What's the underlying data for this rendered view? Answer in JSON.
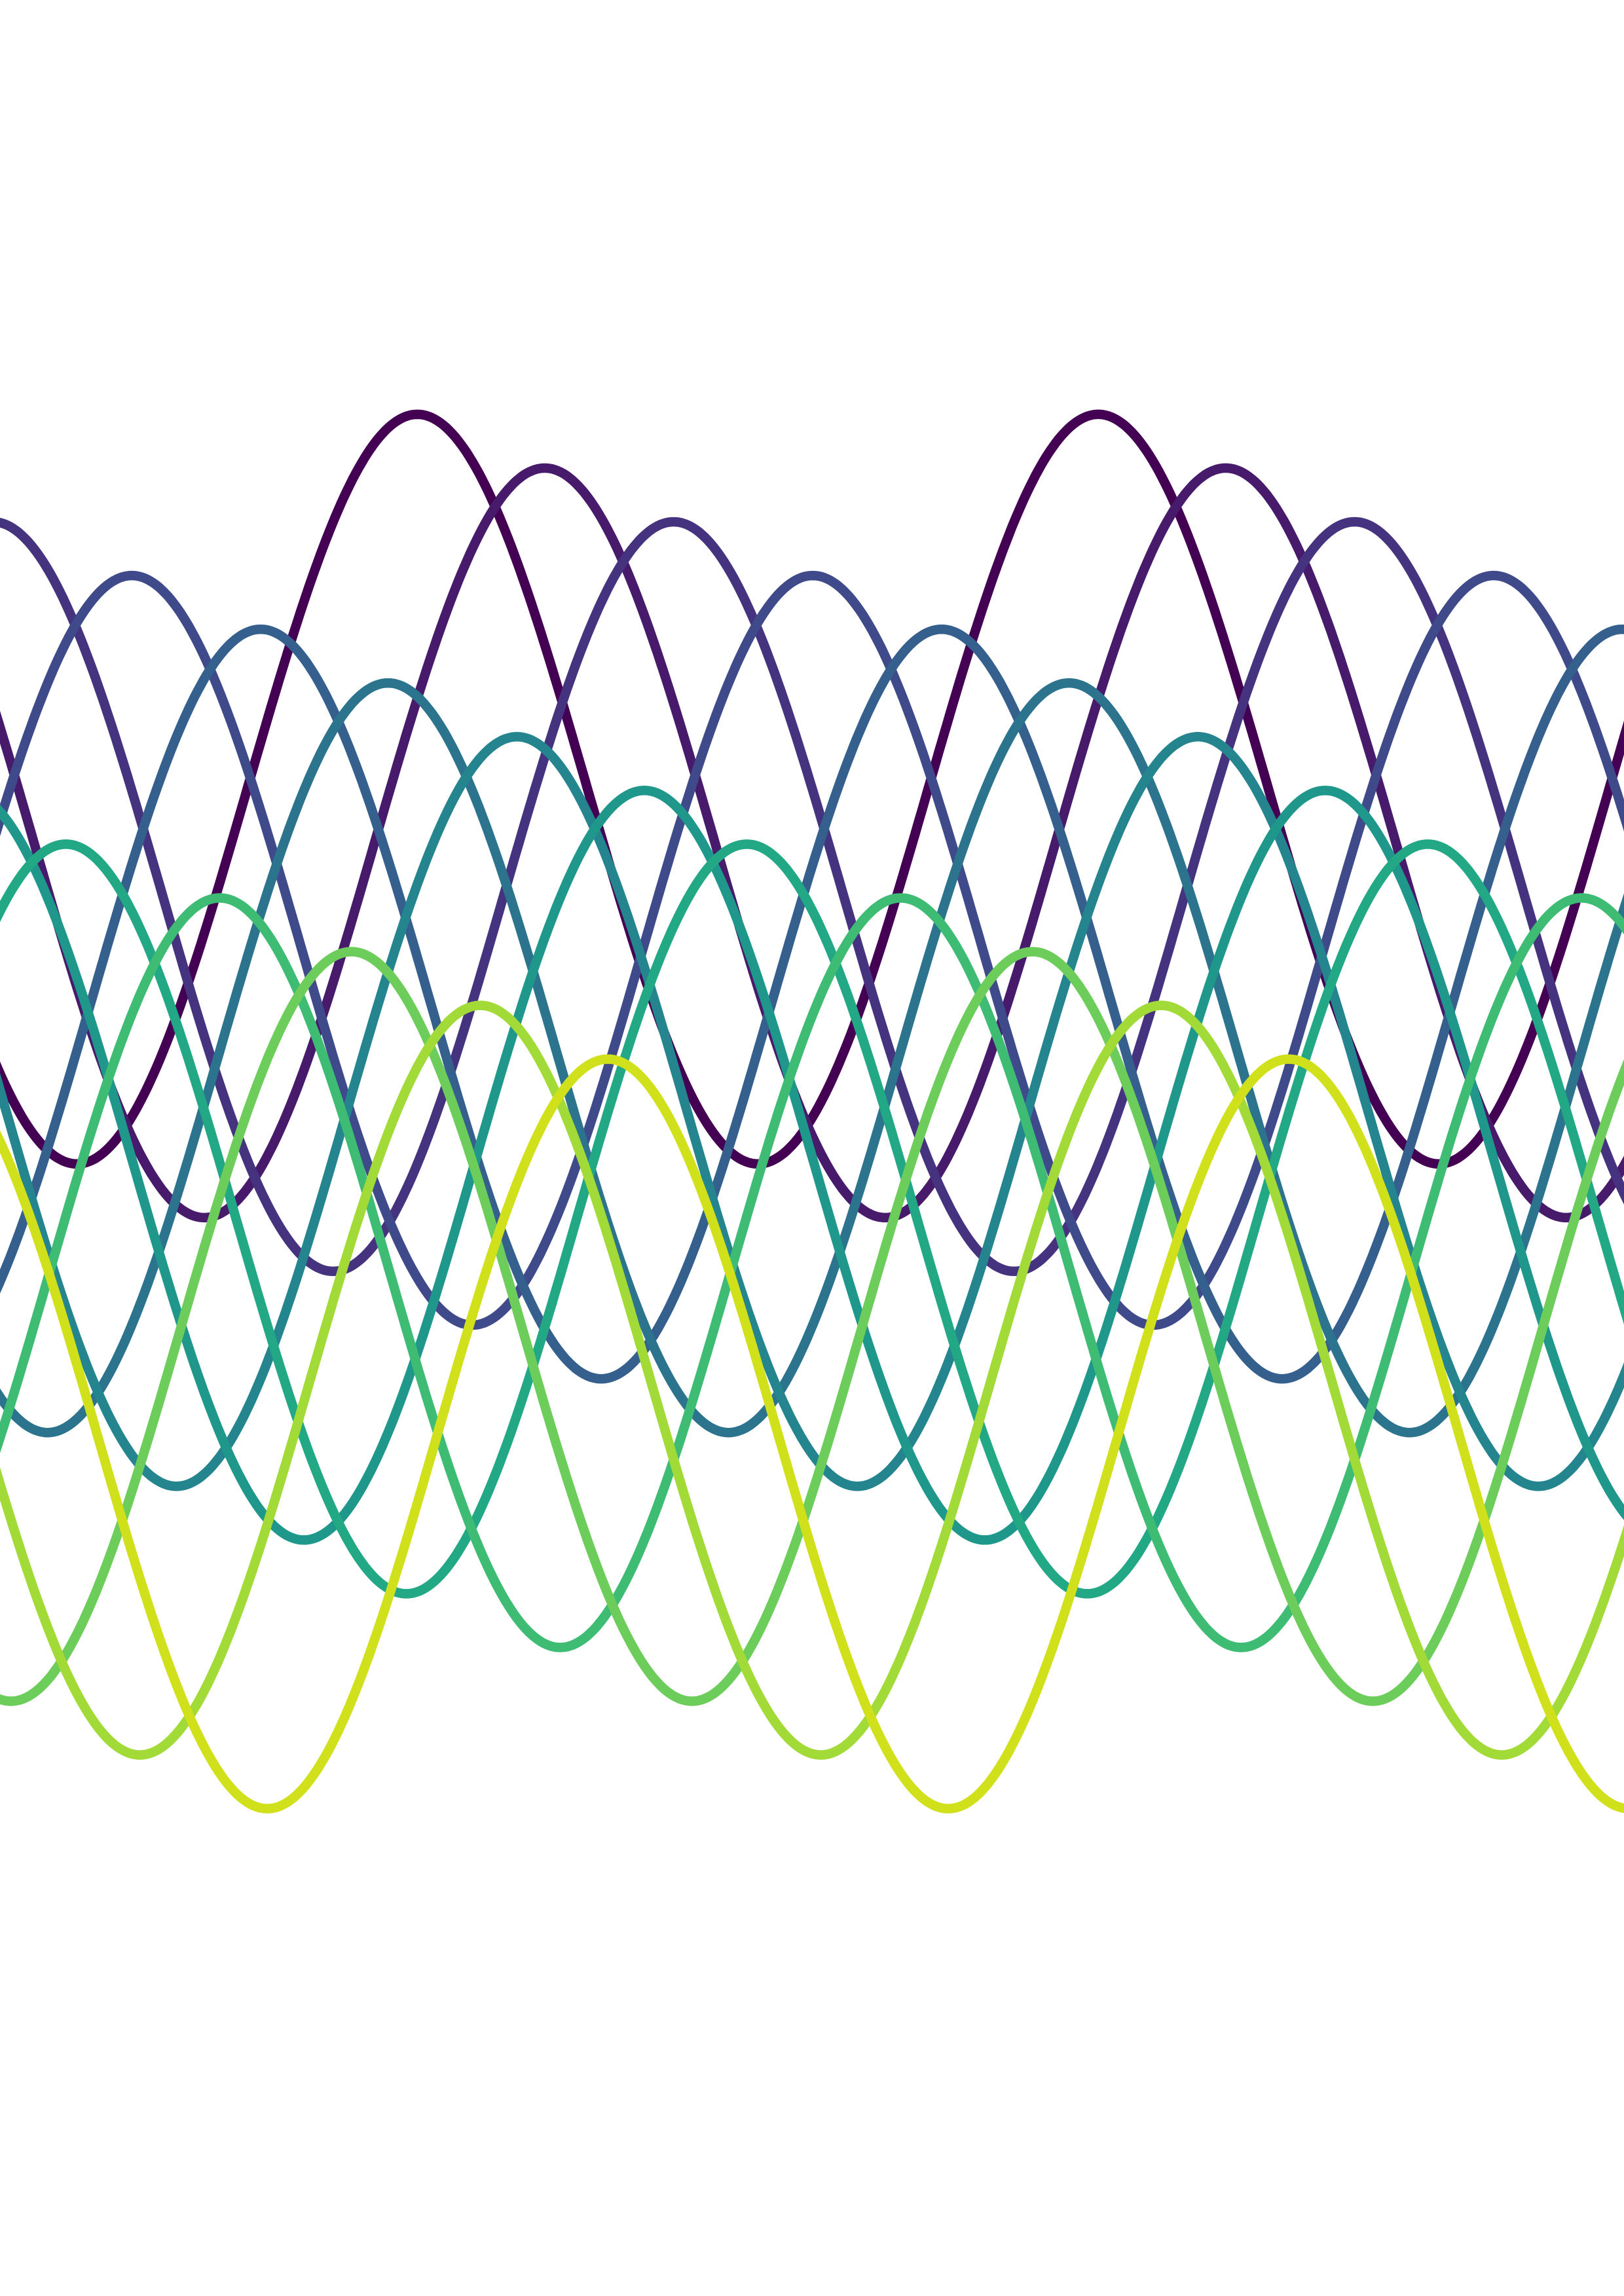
{
  "waves": [
    {
      "color": "#440154"
    },
    {
      "color": "#481a6c"
    },
    {
      "color": "#46337f"
    },
    {
      "color": "#3f4a8a"
    },
    {
      "color": "#355f8d"
    },
    {
      "color": "#2c738e"
    },
    {
      "color": "#25858e"
    },
    {
      "color": "#1f988b"
    },
    {
      "color": "#22a884"
    },
    {
      "color": "#3fbc73"
    },
    {
      "color": "#6ccd5a"
    },
    {
      "color": "#a2da37"
    },
    {
      "color": "#d0e11c"
    }
  ]
}
